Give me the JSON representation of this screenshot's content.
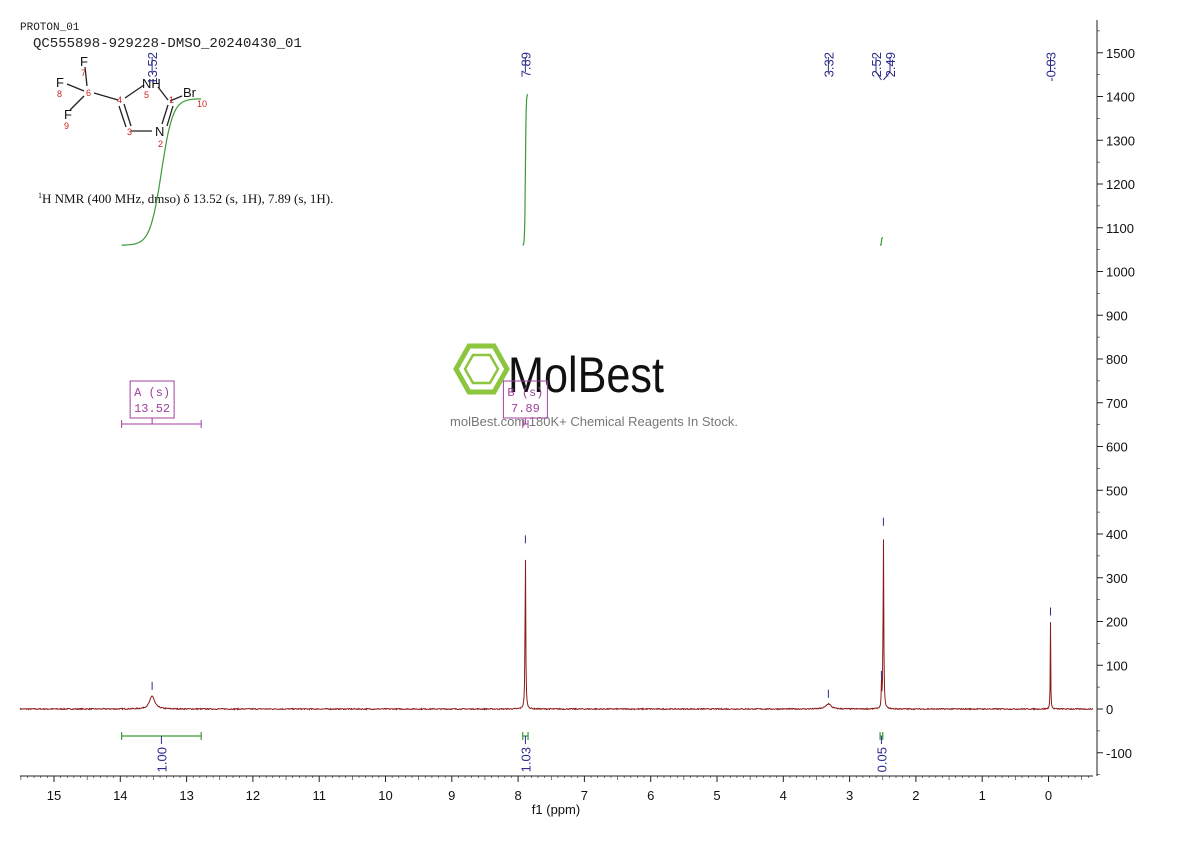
{
  "header": {
    "experiment": "PROTON_01",
    "sample_id": "QC555898-929228-DMSO_20240430_01"
  },
  "structure": {
    "atoms": [
      {
        "symbol": "F",
        "number": "7"
      },
      {
        "symbol": "F",
        "number": "8"
      },
      {
        "symbol": "F",
        "number": "9"
      },
      {
        "symbol": "C",
        "number": "6"
      },
      {
        "symbol": "C",
        "number": "4"
      },
      {
        "symbol": "NH",
        "number": "5"
      },
      {
        "symbol": "C",
        "number": "1"
      },
      {
        "symbol": "Br",
        "number": "10"
      },
      {
        "symbol": "N",
        "number": "2"
      },
      {
        "symbol": "C",
        "number": "3"
      }
    ],
    "colors": {
      "symbol": "#111111",
      "number": "#cc2222",
      "bond": "#222222"
    }
  },
  "nmr_summary": {
    "superscript": "1",
    "text": "H NMR (400 MHz, dmso) δ 13.52 (s, 1H), 7.89 (s, 1H)."
  },
  "watermark": {
    "brand": "MolBest",
    "tagline": "molBest.com 180K+ Chemical Reagents In Stock.",
    "logo_color": "#8cc63f",
    "text_color": "#111111"
  },
  "chart_data": {
    "type": "line",
    "xlabel": "f1 (ppm)",
    "ylabel": "",
    "xlim": [
      15.5,
      -0.65
    ],
    "ylim": [
      -150,
      1580
    ],
    "x_reversed": true,
    "x_ticks": [
      15,
      14,
      13,
      12,
      11,
      10,
      9,
      8,
      7,
      6,
      5,
      4,
      3,
      2,
      1,
      0
    ],
    "y_ticks": [
      -100,
      0,
      100,
      200,
      300,
      400,
      500,
      600,
      700,
      800,
      900,
      1000,
      1100,
      1200,
      1300,
      1400,
      1500
    ],
    "series": [
      {
        "color": "#8b1a1a",
        "peaks": [
          {
            "ppm": 13.52,
            "height": 30,
            "width": 0.09
          },
          {
            "ppm": 7.89,
            "height": 365,
            "width": 0.012
          },
          {
            "ppm": 3.32,
            "height": 12,
            "width": 0.09
          },
          {
            "ppm": 2.52,
            "height": 55,
            "width": 0.008
          },
          {
            "ppm": 2.49,
            "height": 405,
            "width": 0.012
          },
          {
            "ppm": -0.03,
            "height": 200,
            "width": 0.008
          }
        ]
      }
    ],
    "peak_labels": [
      "13.52",
      "7.89",
      "3.32",
      "2.52",
      "2.49",
      "-0.03"
    ],
    "peak_label_ppm": [
      13.52,
      7.89,
      3.32,
      2.52,
      2.49,
      -0.03
    ],
    "peak_label_color": "#2c2c8c",
    "multiplets": [
      {
        "label": "A (s)",
        "shift": "13.52",
        "ppm": 13.52,
        "range": [
          13.98,
          12.78
        ],
        "y": 656
      },
      {
        "label": "B (s)",
        "shift": "7.89",
        "ppm": 7.89,
        "range": [
          7.93,
          7.85
        ],
        "y": 656
      }
    ],
    "multiplet_color": "#a040a0",
    "integrals": [
      {
        "value": "1.00",
        "range": [
          13.98,
          12.78
        ],
        "curve_start": 1060,
        "curve_end": 1395
      },
      {
        "value": "1.03",
        "range": [
          7.93,
          7.85
        ],
        "curve_start": 1060,
        "curve_end": 1405
      },
      {
        "value": "0.05",
        "range": [
          2.54,
          2.5
        ],
        "curve_start": 1060,
        "curve_end": 1077
      }
    ],
    "integral_color": "#3a9a3a"
  }
}
